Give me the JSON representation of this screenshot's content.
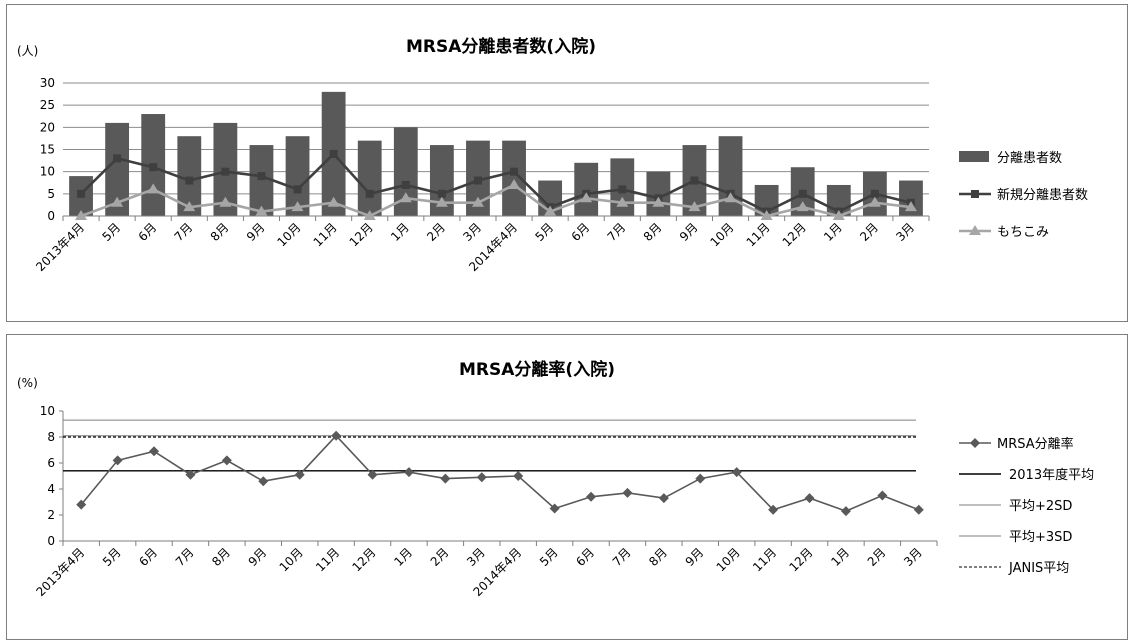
{
  "chart_data": [
    {
      "type": "bar",
      "title": "MRSA分離患者数(入院)",
      "ylabel": "(人)",
      "xlabel": "",
      "ylim": [
        0,
        30
      ],
      "yticks": [
        0,
        5,
        10,
        15,
        20,
        25,
        30
      ],
      "grid": true,
      "legend_position": "right",
      "categories": [
        "2013年4月",
        "5月",
        "6月",
        "7月",
        "8月",
        "9月",
        "10月",
        "11月",
        "12月",
        "1月",
        "2月",
        "3月",
        "2014年4月",
        "5月",
        "6月",
        "7月",
        "8月",
        "9月",
        "10月",
        "11月",
        "12月",
        "1月",
        "2月",
        "3月"
      ],
      "series": [
        {
          "name": "分離患者数",
          "kind": "bar",
          "color": "#595959",
          "values": [
            9,
            21,
            23,
            18,
            21,
            16,
            18,
            28,
            17,
            20,
            16,
            17,
            17,
            8,
            12,
            13,
            10,
            16,
            18,
            7,
            11,
            7,
            10,
            8
          ]
        },
        {
          "name": "新規分離患者数",
          "kind": "line",
          "marker": "square",
          "color": "#3f3f3f",
          "values": [
            5,
            13,
            11,
            8,
            10,
            9,
            6,
            14,
            5,
            7,
            5,
            8,
            10,
            2,
            5,
            6,
            4,
            8,
            5,
            1,
            5,
            1,
            5,
            3
          ]
        },
        {
          "name": "もちこみ",
          "kind": "line",
          "marker": "triangle",
          "color": "#a6a6a6",
          "values": [
            0,
            3,
            6,
            2,
            3,
            1,
            2,
            3,
            0,
            4,
            3,
            3,
            7,
            1,
            4,
            3,
            3,
            2,
            4,
            0,
            2,
            0,
            3,
            2
          ]
        }
      ]
    },
    {
      "type": "line",
      "title": "MRSA分離率(入院)",
      "ylabel": "(%)",
      "xlabel": "",
      "ylim": [
        0,
        10
      ],
      "yticks": [
        0,
        2,
        4,
        6,
        8,
        10
      ],
      "grid": false,
      "legend_position": "right",
      "categories": [
        "2013年4月",
        "5月",
        "6月",
        "7月",
        "8月",
        "9月",
        "10月",
        "11月",
        "12月",
        "1月",
        "2月",
        "3月",
        "2014年4月",
        "5月",
        "6月",
        "7月",
        "8月",
        "9月",
        "10月",
        "11月",
        "12月",
        "1月",
        "2月",
        "3月"
      ],
      "series": [
        {
          "name": "MRSA分離率",
          "kind": "line",
          "marker": "diamond",
          "color": "#595959",
          "values": [
            2.8,
            6.2,
            6.9,
            5.1,
            6.2,
            4.6,
            5.1,
            8.1,
            5.1,
            5.3,
            4.8,
            4.9,
            5.0,
            2.5,
            3.4,
            3.7,
            3.3,
            4.8,
            5.3,
            2.4,
            3.3,
            2.3,
            3.5,
            2.4
          ]
        },
        {
          "name": "2013年度平均",
          "kind": "hline",
          "style": "solid",
          "color": "#000000",
          "value": 5.4
        },
        {
          "name": "平均+2SD",
          "kind": "hline",
          "style": "thin",
          "color": "#7f7f7f",
          "value": 8.1
        },
        {
          "name": "平均+3SD",
          "kind": "hline",
          "style": "thin",
          "color": "#7f7f7f",
          "value": 9.3
        },
        {
          "name": "JANIS平均",
          "kind": "hline",
          "style": "dashed",
          "color": "#000000",
          "value": 8.0
        }
      ]
    }
  ]
}
